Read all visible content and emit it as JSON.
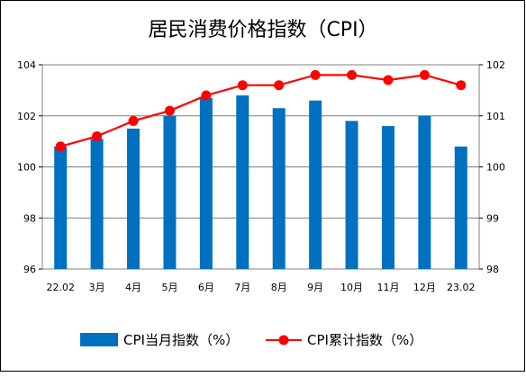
{
  "chart_data": {
    "type": "bar+line",
    "title": "居民消费价格指数（CPI）",
    "categories": [
      "22.02",
      "3月",
      "4月",
      "5月",
      "6月",
      "7月",
      "8月",
      "9月",
      "10月",
      "11月",
      "12月",
      "23.02"
    ],
    "series": [
      {
        "name": "CPI当月指数（%）",
        "type": "bar",
        "axis": "left",
        "color": "#0070C0",
        "values": [
          100.8,
          101.1,
          101.5,
          102.0,
          102.7,
          102.8,
          102.3,
          102.6,
          101.8,
          101.6,
          102.0,
          100.8
        ]
      },
      {
        "name": "CPI累计指数（%）",
        "type": "line",
        "axis": "right",
        "color": "#FF0000",
        "values": [
          100.4,
          100.6,
          100.9,
          101.1,
          101.4,
          101.6,
          101.6,
          101.8,
          101.8,
          101.7,
          101.8,
          101.6
        ]
      }
    ],
    "y_left": {
      "min": 96,
      "max": 104,
      "ticks": [
        "96",
        "98",
        "100",
        "102",
        "104"
      ]
    },
    "y_right": {
      "min": 98,
      "max": 102,
      "ticks": [
        "98",
        "99",
        "100",
        "101",
        "102"
      ]
    },
    "grid": true,
    "legend_position": "bottom"
  }
}
